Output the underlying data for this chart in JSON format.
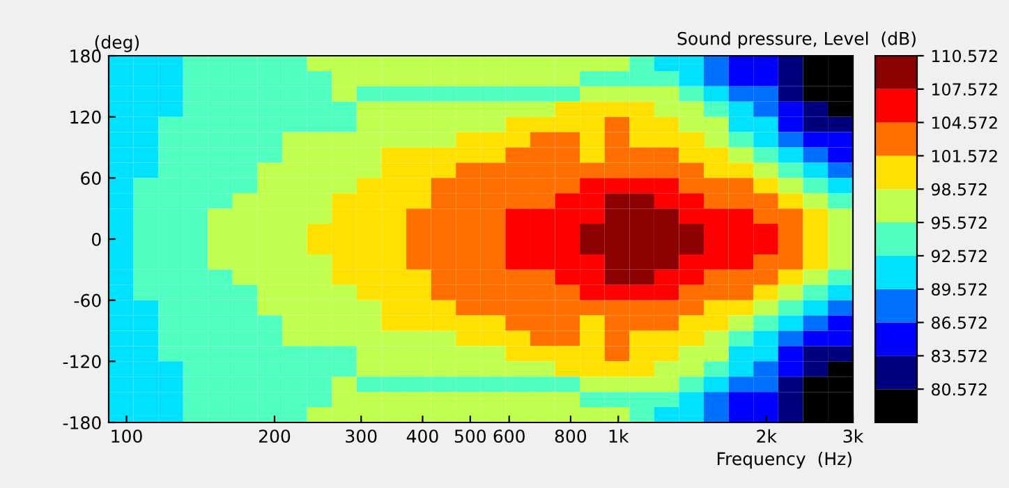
{
  "chart_data": {
    "type": "heatmap",
    "xlabel": "Frequency  (Hz)",
    "ylabel": "(deg)",
    "clabel": "Sound pressure, Level  (dB)",
    "log": "x",
    "grid": false,
    "xlim": [
      92,
      3000
    ],
    "ylim": [
      -180,
      180
    ],
    "xticks": [
      100,
      200,
      300,
      400,
      500,
      600,
      800,
      {
        "value": 1000,
        "label": "1k"
      },
      {
        "value": 2000,
        "label": "2k"
      },
      {
        "value": 3000,
        "label": "3k"
      }
    ],
    "yticks": [
      -180,
      -120,
      -60,
      0,
      60,
      120,
      180
    ],
    "clim": [
      77.572,
      110.572
    ],
    "cticks": [
      80.572,
      83.572,
      86.572,
      89.572,
      92.572,
      95.572,
      98.572,
      101.572,
      104.572,
      107.572,
      110.572
    ],
    "colors": [
      "#000000",
      "#00007f",
      "#0000ff",
      "#0070ff",
      "#00e0ff",
      "#50ffc0",
      "#c0ff50",
      "#ffe000",
      "#ff7000",
      "#ff0000",
      "#8b0000"
    ],
    "x": [
      97.5,
      109.5,
      123,
      138.1,
      155.1,
      174.2,
      195.7,
      219.8,
      246.8,
      277.2,
      311.3,
      349.7,
      392.7,
      441.1,
      495.4,
      556.4,
      624.9,
      701.8,
      788.2,
      885.2,
      994.2,
      1117,
      1254,
      1408,
      1582,
      1777,
      1995,
      2241,
      2517,
      2829
    ],
    "y": [
      172.5,
      157.5,
      142.5,
      127.5,
      112.5,
      97.5,
      82.5,
      67.5,
      52.5,
      37.5,
      22.5,
      7.5,
      -7.5,
      -22.5,
      -37.5,
      -52.5,
      -67.5,
      -82.5,
      -97.5,
      -112.5,
      -127.5,
      -142.5,
      -157.5,
      -172.5
    ],
    "cells": [
      [
        91,
        91,
        91,
        94,
        94,
        94,
        94,
        94,
        97,
        97,
        97,
        97,
        97,
        97,
        97,
        97,
        97,
        97,
        97,
        97,
        97,
        94,
        91,
        91,
        88,
        85,
        85,
        82,
        79,
        79
      ],
      [
        91,
        91,
        91,
        94,
        94,
        94,
        94,
        94,
        94,
        97,
        97,
        97,
        97,
        97,
        97,
        97,
        97,
        97,
        97,
        94,
        94,
        94,
        94,
        91,
        88,
        85,
        85,
        82,
        79,
        79
      ],
      [
        91,
        91,
        91,
        94,
        94,
        94,
        94,
        94,
        94,
        97,
        94,
        94,
        94,
        94,
        94,
        94,
        94,
        94,
        94,
        97,
        97,
        97,
        97,
        94,
        91,
        88,
        88,
        82,
        79,
        79
      ],
      [
        91,
        91,
        91,
        94,
        94,
        94,
        94,
        94,
        94,
        94,
        97,
        97,
        97,
        97,
        97,
        97,
        97,
        97,
        100,
        100,
        100,
        100,
        97,
        97,
        94,
        91,
        88,
        85,
        82,
        79
      ],
      [
        91,
        91,
        94,
        94,
        94,
        94,
        94,
        94,
        94,
        94,
        97,
        97,
        97,
        97,
        97,
        97,
        100,
        100,
        100,
        100,
        103,
        100,
        100,
        97,
        97,
        91,
        91,
        85,
        82,
        82
      ],
      [
        91,
        91,
        94,
        94,
        94,
        94,
        94,
        97,
        97,
        97,
        97,
        97,
        97,
        97,
        100,
        100,
        100,
        103,
        103,
        100,
        103,
        100,
        100,
        100,
        97,
        94,
        91,
        88,
        85,
        85
      ],
      [
        91,
        91,
        94,
        94,
        94,
        94,
        94,
        97,
        97,
        97,
        97,
        100,
        100,
        100,
        100,
        100,
        103,
        103,
        103,
        100,
        103,
        103,
        103,
        100,
        100,
        97,
        94,
        91,
        88,
        85
      ],
      [
        91,
        91,
        94,
        94,
        94,
        94,
        97,
        97,
        97,
        97,
        97,
        100,
        100,
        100,
        103,
        103,
        103,
        103,
        103,
        103,
        103,
        103,
        103,
        103,
        100,
        100,
        97,
        94,
        91,
        88
      ],
      [
        91,
        94,
        94,
        94,
        94,
        94,
        97,
        97,
        97,
        97,
        100,
        100,
        100,
        103,
        103,
        103,
        103,
        103,
        103,
        106,
        106,
        106,
        106,
        103,
        103,
        103,
        100,
        97,
        94,
        91
      ],
      [
        91,
        94,
        94,
        94,
        94,
        97,
        97,
        97,
        97,
        100,
        100,
        100,
        100,
        103,
        103,
        103,
        103,
        103,
        106,
        106,
        109,
        109,
        106,
        106,
        103,
        103,
        103,
        100,
        97,
        94
      ],
      [
        91,
        94,
        94,
        94,
        97,
        97,
        97,
        97,
        97,
        100,
        100,
        100,
        103,
        103,
        103,
        103,
        106,
        106,
        106,
        106,
        109,
        109,
        109,
        106,
        106,
        106,
        103,
        103,
        100,
        97
      ],
      [
        91,
        94,
        94,
        94,
        97,
        97,
        97,
        97,
        100,
        100,
        100,
        100,
        103,
        103,
        103,
        103,
        106,
        106,
        106,
        109,
        109,
        109,
        109,
        109,
        106,
        106,
        106,
        103,
        100,
        97
      ],
      [
        91,
        94,
        94,
        94,
        97,
        97,
        97,
        97,
        100,
        100,
        100,
        100,
        103,
        103,
        103,
        103,
        106,
        106,
        106,
        109,
        109,
        109,
        109,
        109,
        106,
        106,
        106,
        103,
        100,
        97
      ],
      [
        91,
        94,
        94,
        94,
        97,
        97,
        97,
        97,
        97,
        100,
        100,
        100,
        103,
        103,
        103,
        103,
        106,
        106,
        106,
        106,
        109,
        109,
        109,
        106,
        106,
        106,
        103,
        103,
        100,
        97
      ],
      [
        91,
        94,
        94,
        94,
        94,
        97,
        97,
        97,
        97,
        100,
        100,
        100,
        100,
        103,
        103,
        103,
        103,
        103,
        106,
        106,
        109,
        109,
        106,
        106,
        103,
        103,
        103,
        100,
        97,
        94
      ],
      [
        91,
        94,
        94,
        94,
        94,
        94,
        97,
        97,
        97,
        97,
        100,
        100,
        100,
        103,
        103,
        103,
        103,
        103,
        103,
        106,
        106,
        106,
        106,
        103,
        103,
        103,
        100,
        97,
        94,
        91
      ],
      [
        91,
        91,
        94,
        94,
        94,
        94,
        97,
        97,
        97,
        97,
        97,
        100,
        100,
        100,
        103,
        103,
        103,
        103,
        103,
        103,
        103,
        103,
        103,
        103,
        100,
        100,
        97,
        94,
        91,
        88
      ],
      [
        91,
        91,
        94,
        94,
        94,
        94,
        94,
        97,
        97,
        97,
        97,
        100,
        100,
        100,
        100,
        100,
        103,
        103,
        103,
        100,
        103,
        103,
        103,
        100,
        100,
        97,
        94,
        91,
        88,
        85
      ],
      [
        91,
        91,
        94,
        94,
        94,
        94,
        94,
        97,
        97,
        97,
        97,
        97,
        97,
        97,
        100,
        100,
        100,
        103,
        103,
        100,
        103,
        100,
        100,
        100,
        97,
        94,
        91,
        88,
        85,
        85
      ],
      [
        91,
        91,
        94,
        94,
        94,
        94,
        94,
        94,
        94,
        94,
        97,
        97,
        97,
        97,
        97,
        97,
        100,
        100,
        100,
        100,
        103,
        100,
        100,
        97,
        97,
        91,
        91,
        85,
        82,
        82
      ],
      [
        91,
        91,
        91,
        94,
        94,
        94,
        94,
        94,
        94,
        94,
        97,
        97,
        97,
        97,
        97,
        97,
        97,
        97,
        100,
        100,
        100,
        100,
        97,
        97,
        94,
        91,
        88,
        85,
        82,
        79
      ],
      [
        91,
        91,
        91,
        94,
        94,
        94,
        94,
        94,
        94,
        97,
        94,
        94,
        94,
        94,
        94,
        94,
        94,
        94,
        94,
        97,
        97,
        97,
        97,
        94,
        91,
        88,
        88,
        82,
        79,
        79
      ],
      [
        91,
        91,
        91,
        94,
        94,
        94,
        94,
        94,
        94,
        97,
        97,
        97,
        97,
        97,
        97,
        97,
        97,
        97,
        97,
        94,
        94,
        94,
        94,
        91,
        88,
        85,
        85,
        82,
        79,
        79
      ],
      [
        91,
        91,
        91,
        94,
        94,
        94,
        94,
        94,
        97,
        97,
        97,
        97,
        97,
        97,
        97,
        97,
        97,
        97,
        97,
        97,
        97,
        94,
        91,
        91,
        88,
        85,
        85,
        82,
        79,
        79
      ]
    ]
  }
}
